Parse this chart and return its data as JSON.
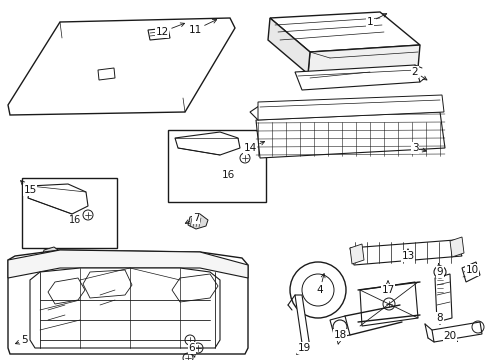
{
  "bg_color": "#ffffff",
  "line_color": "#1a1a1a",
  "fig_width": 4.89,
  "fig_height": 3.6,
  "dpi": 100,
  "lw": 0.75
}
